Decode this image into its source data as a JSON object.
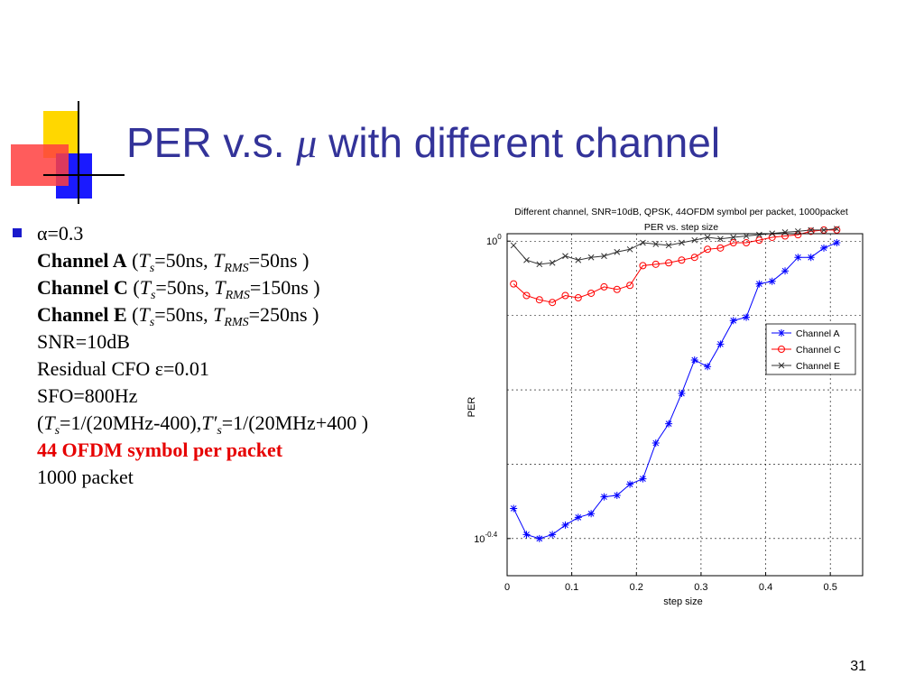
{
  "colors": {
    "title": "#333399",
    "accent_yellow": "#ffd700",
    "accent_red": "#ff4040",
    "accent_blue": "#1a1aff",
    "bullet": "#1a1acc",
    "highlight_red": "#e60000"
  },
  "title": {
    "before": "PER v.s. ",
    "symbol": "μ",
    "after": " with different channel"
  },
  "params": {
    "alpha": "α=0.3",
    "channel_a_name": "Channel A",
    "channel_a_open": " (",
    "channel_a_ts": "T",
    "channel_a_ts_sub": "s",
    "channel_a_ts_val": "=50ns, ",
    "channel_a_trms": "T",
    "channel_a_trms_sub": "RMS",
    "channel_a_trms_val": "=50ns )",
    "channel_c_name": "Channel C",
    "channel_c_open": " (",
    "channel_c_ts": "T",
    "channel_c_ts_sub": "s",
    "channel_c_ts_val": "=50ns, ",
    "channel_c_trms": "T",
    "channel_c_trms_sub": "RMS",
    "channel_c_trms_val": "=150ns )",
    "channel_e_name": "Channel E",
    "channel_e_open": " (",
    "channel_e_ts": "T",
    "channel_e_ts_sub": "s",
    "channel_e_ts_val": "=50ns, ",
    "channel_e_trms": "T",
    "channel_e_trms_sub": "RMS",
    "channel_e_trms_val": "=250ns )",
    "snr": "SNR=10dB",
    "cfo": "Residual CFO ε=0.01",
    "sfo": "SFO=800Hz",
    "sample_open": "(",
    "sample_t1": "T",
    "sample_t1_sub": "s",
    "sample_t1_val": "=1/(20MHz-400),",
    "sample_t2": "T′",
    "sample_t2_sub": "s",
    "sample_t2_val": "=1/(20MHz+400 )",
    "symbols": "44 OFDM symbol per packet",
    "packets": "1000 packet"
  },
  "page_number": "31",
  "chart_data": {
    "type": "line",
    "title": "Different channel, SNR=10dB, QPSK, 44OFDM symbol per packet, 1000packet",
    "subtitle": "PER vs. step size",
    "xlabel": "step size",
    "ylabel": "PER",
    "xlim": [
      0,
      0.55
    ],
    "ylim_log10": [
      -0.45,
      0.01
    ],
    "yscale": "log",
    "x_ticks": [
      "0",
      "0.1",
      "0.2",
      "0.3",
      "0.4",
      "0.5"
    ],
    "x_tick_values": [
      0,
      0.1,
      0.2,
      0.3,
      0.4,
      0.5
    ],
    "y_tick_labels": [
      {
        "base": "10",
        "exp": "0",
        "log10": 0
      },
      {
        "base": "10",
        "exp": "-0.4",
        "log10": -0.4
      }
    ],
    "y_grid_log10": [
      -0.1,
      -0.2,
      -0.3
    ],
    "grid": true,
    "legend_position": "right, middle",
    "x": [
      0.01,
      0.03,
      0.05,
      0.07,
      0.09,
      0.11,
      0.13,
      0.15,
      0.17,
      0.19,
      0.21,
      0.23,
      0.25,
      0.27,
      0.29,
      0.31,
      0.33,
      0.35,
      0.37,
      0.39,
      0.41,
      0.43,
      0.45,
      0.47,
      0.49,
      0.51
    ],
    "series": [
      {
        "name": "Channel A",
        "color": "#0000ff",
        "marker": "star",
        "values": [
          0.437,
          0.403,
          0.398,
          0.403,
          0.415,
          0.425,
          0.43,
          0.453,
          0.455,
          0.471,
          0.479,
          0.535,
          0.568,
          0.624,
          0.692,
          0.678,
          0.727,
          0.782,
          0.79,
          0.876,
          0.883,
          0.912,
          0.951,
          0.951,
          0.979,
          0.995
        ]
      },
      {
        "name": "Channel C",
        "color": "#ff0000",
        "marker": "circle",
        "values": [
          0.876,
          0.845,
          0.834,
          0.827,
          0.845,
          0.839,
          0.851,
          0.868,
          0.861,
          0.872,
          0.927,
          0.931,
          0.935,
          0.943,
          0.951,
          0.975,
          0.979,
          0.995,
          0.995,
          1.003,
          1.012,
          1.016,
          1.02,
          1.031,
          1.035,
          1.035
        ]
      },
      {
        "name": "Channel E",
        "color": "#333333",
        "marker": "x",
        "values": [
          0.987,
          0.943,
          0.931,
          0.935,
          0.955,
          0.943,
          0.951,
          0.955,
          0.967,
          0.975,
          0.995,
          0.991,
          0.987,
          0.995,
          1.003,
          1.012,
          1.007,
          1.012,
          1.016,
          1.02,
          1.024,
          1.028,
          1.031,
          1.035,
          1.035,
          1.039
        ]
      }
    ]
  }
}
